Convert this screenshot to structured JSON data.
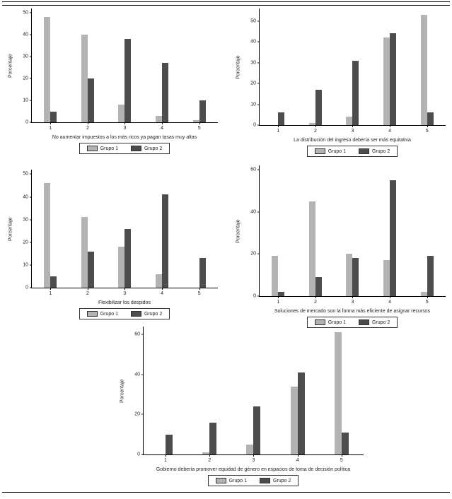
{
  "figure": {
    "background": "#ffffff",
    "series_names": [
      "Grupo 1",
      "Grupo 2"
    ]
  },
  "colors": {
    "grupo1": "#b3b3b3",
    "grupo2": "#4d4d4d",
    "axis": "#000000"
  },
  "chart_data": [
    {
      "type": "bar",
      "title": "No aumentar impuestos a los más ricos ya pagan tasas muy altas",
      "xlabel": "",
      "ylabel": "Porcentaje",
      "categories": [
        "1",
        "2",
        "3",
        "4",
        "5"
      ],
      "yticks": [
        0,
        10,
        20,
        30,
        40,
        50
      ],
      "ylim": [
        0,
        52
      ],
      "grid": false,
      "legend_position": "below",
      "series": [
        {
          "name": "Grupo 1",
          "values": [
            48,
            40,
            8,
            3,
            1
          ]
        },
        {
          "name": "Grupo 2",
          "values": [
            5,
            20,
            38,
            27,
            10
          ]
        }
      ]
    },
    {
      "type": "bar",
      "title": "La distribución del ingreso debería ser más equitativa",
      "xlabel": "",
      "ylabel": "Porcentaje",
      "categories": [
        "1",
        "2",
        "3",
        "4",
        "5"
      ],
      "yticks": [
        0,
        10,
        20,
        30,
        40,
        50
      ],
      "ylim": [
        0,
        56
      ],
      "grid": false,
      "legend_position": "below",
      "series": [
        {
          "name": "Grupo 1",
          "values": [
            0,
            1,
            4,
            42,
            53
          ]
        },
        {
          "name": "Grupo 2",
          "values": [
            6,
            17,
            31,
            44,
            6
          ]
        }
      ]
    },
    {
      "type": "bar",
      "title": "Flexibilizar los despidos",
      "xlabel": "",
      "ylabel": "Porcentaje",
      "categories": [
        "1",
        "2",
        "3",
        "4",
        "5"
      ],
      "yticks": [
        0,
        10,
        20,
        30,
        40,
        50
      ],
      "ylim": [
        0,
        52
      ],
      "grid": false,
      "legend_position": "below",
      "series": [
        {
          "name": "Grupo 1",
          "values": [
            46,
            31,
            18,
            6,
            0
          ]
        },
        {
          "name": "Grupo 2",
          "values": [
            5,
            16,
            26,
            41,
            13
          ]
        }
      ]
    },
    {
      "type": "bar",
      "title": "Soluciones de mercado son la forma más eficiente de asignar recursos",
      "xlabel": "",
      "ylabel": "Porcentaje",
      "categories": [
        "1",
        "2",
        "3",
        "4",
        "5"
      ],
      "yticks": [
        0,
        20,
        40,
        60
      ],
      "ylim": [
        0,
        62
      ],
      "grid": false,
      "legend_position": "below",
      "series": [
        {
          "name": "Grupo 1",
          "values": [
            19,
            45,
            20,
            17,
            2
          ]
        },
        {
          "name": "Grupo 2",
          "values": [
            2,
            9,
            18,
            55,
            19
          ]
        }
      ]
    },
    {
      "type": "bar",
      "title": "Gobierno debería promover equidad de género en espacios de toma de decisión política",
      "xlabel": "",
      "ylabel": "Porcentaje",
      "categories": [
        "1",
        "2",
        "3",
        "4",
        "5"
      ],
      "yticks": [
        0,
        20,
        40,
        60
      ],
      "ylim": [
        0,
        64
      ],
      "grid": false,
      "legend_position": "below",
      "series": [
        {
          "name": "Grupo 1",
          "values": [
            0,
            1,
            5,
            34,
            61
          ]
        },
        {
          "name": "Grupo 2",
          "values": [
            10,
            16,
            24,
            41,
            11
          ]
        }
      ]
    }
  ]
}
